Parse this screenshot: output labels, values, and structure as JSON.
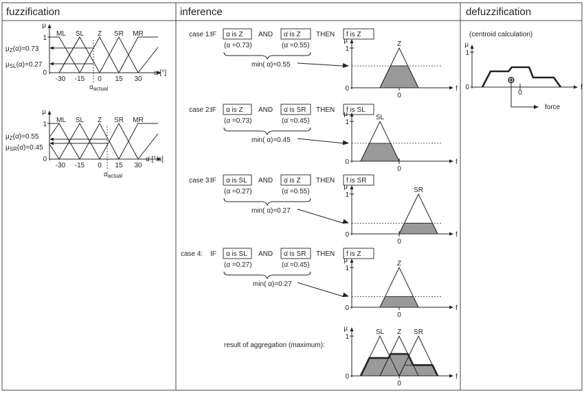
{
  "headers": {
    "fuzzification": "fuzzification",
    "inference": "inference",
    "defuzzification": "defuzzification"
  },
  "membership_sets": [
    "ML",
    "SL",
    "Z",
    "SR",
    "MR"
  ],
  "fuzz_plot1": {
    "mu_label": "μ",
    "one": "1",
    "zero": "0",
    "ticks": [
      "-30",
      "-15",
      "0",
      "15",
      "30"
    ],
    "axis_label": "α [°]",
    "actual_label": "α",
    "actual_sub": "actual",
    "readouts": [
      {
        "label": "μ",
        "sub": "Z",
        "arg": "(α)",
        "value": "=0.73"
      },
      {
        "label": "μ",
        "sub": "SL",
        "arg": "(α)",
        "value": "=0.27"
      }
    ]
  },
  "fuzz_plot2": {
    "mu_label": "μ",
    "one": "1",
    "zero": "0",
    "ticks": [
      "-30",
      "-15",
      "0",
      "15",
      "30"
    ],
    "axis_label": "α̇ [°/s]",
    "actual_label": "α̇",
    "actual_sub": "actual",
    "readouts": [
      {
        "label": "μ",
        "sub": "Z",
        "arg": "(α̇)",
        "value": "=0.55"
      },
      {
        "label": "μ",
        "sub": "SR",
        "arg": "(α̇)",
        "value": "=0.45"
      }
    ]
  },
  "inference": {
    "kw_if": "IF",
    "kw_and": "AND",
    "kw_then": "THEN",
    "mu_label": "μ",
    "one": "1",
    "zero": "0",
    "f_label": "f",
    "cases": [
      {
        "name": "case 1:",
        "cond1": "α is Z",
        "cond2": "α̇ is Z",
        "result": "f is Z",
        "val1": "(α =0.73)",
        "val2": "(α̇ =0.55)",
        "min_text": "min( α)=0.55",
        "set": "Z",
        "center": 0,
        "level": 0.55
      },
      {
        "name": "case 2:",
        "cond1": "α is Z",
        "cond2": "α̇ is SR",
        "result": "f is SL",
        "val1": "(α =0.73)",
        "val2": "(α̇ =0.45)",
        "min_text": "min( α)=0.45",
        "set": "SL",
        "center": -1,
        "level": 0.45
      },
      {
        "name": "case 3:",
        "cond1": "α is SL",
        "cond2": "α̇ is Z",
        "result": "f is SR",
        "val1": "(α =0.27)",
        "val2": "(α̇ =0.55)",
        "min_text": "min( α)=0.27",
        "set": "SR",
        "center": 1,
        "level": 0.27
      },
      {
        "name": "case 4:",
        "cond1": "α is SL",
        "cond2": "α̇ is SR",
        "result": "f is Z",
        "val1": "(α =0.27)",
        "val2": "(α̇ =0.45)",
        "min_text": "min( α)=0.27",
        "set": "Z",
        "center": 0,
        "level": 0.27
      }
    ],
    "aggregation": {
      "label": "result of aggregation (maximum):",
      "sets": [
        "SL",
        "Z",
        "SR"
      ],
      "levels": [
        0.45,
        0.55,
        0.27
      ]
    }
  },
  "defuzz": {
    "subtitle": "(centroid calculation)",
    "mu_label": "μ",
    "one": "1",
    "zero_y": "0",
    "zero_x": "0",
    "f_label": "f",
    "centroid_symbol": "⊕",
    "force_label": "force"
  }
}
